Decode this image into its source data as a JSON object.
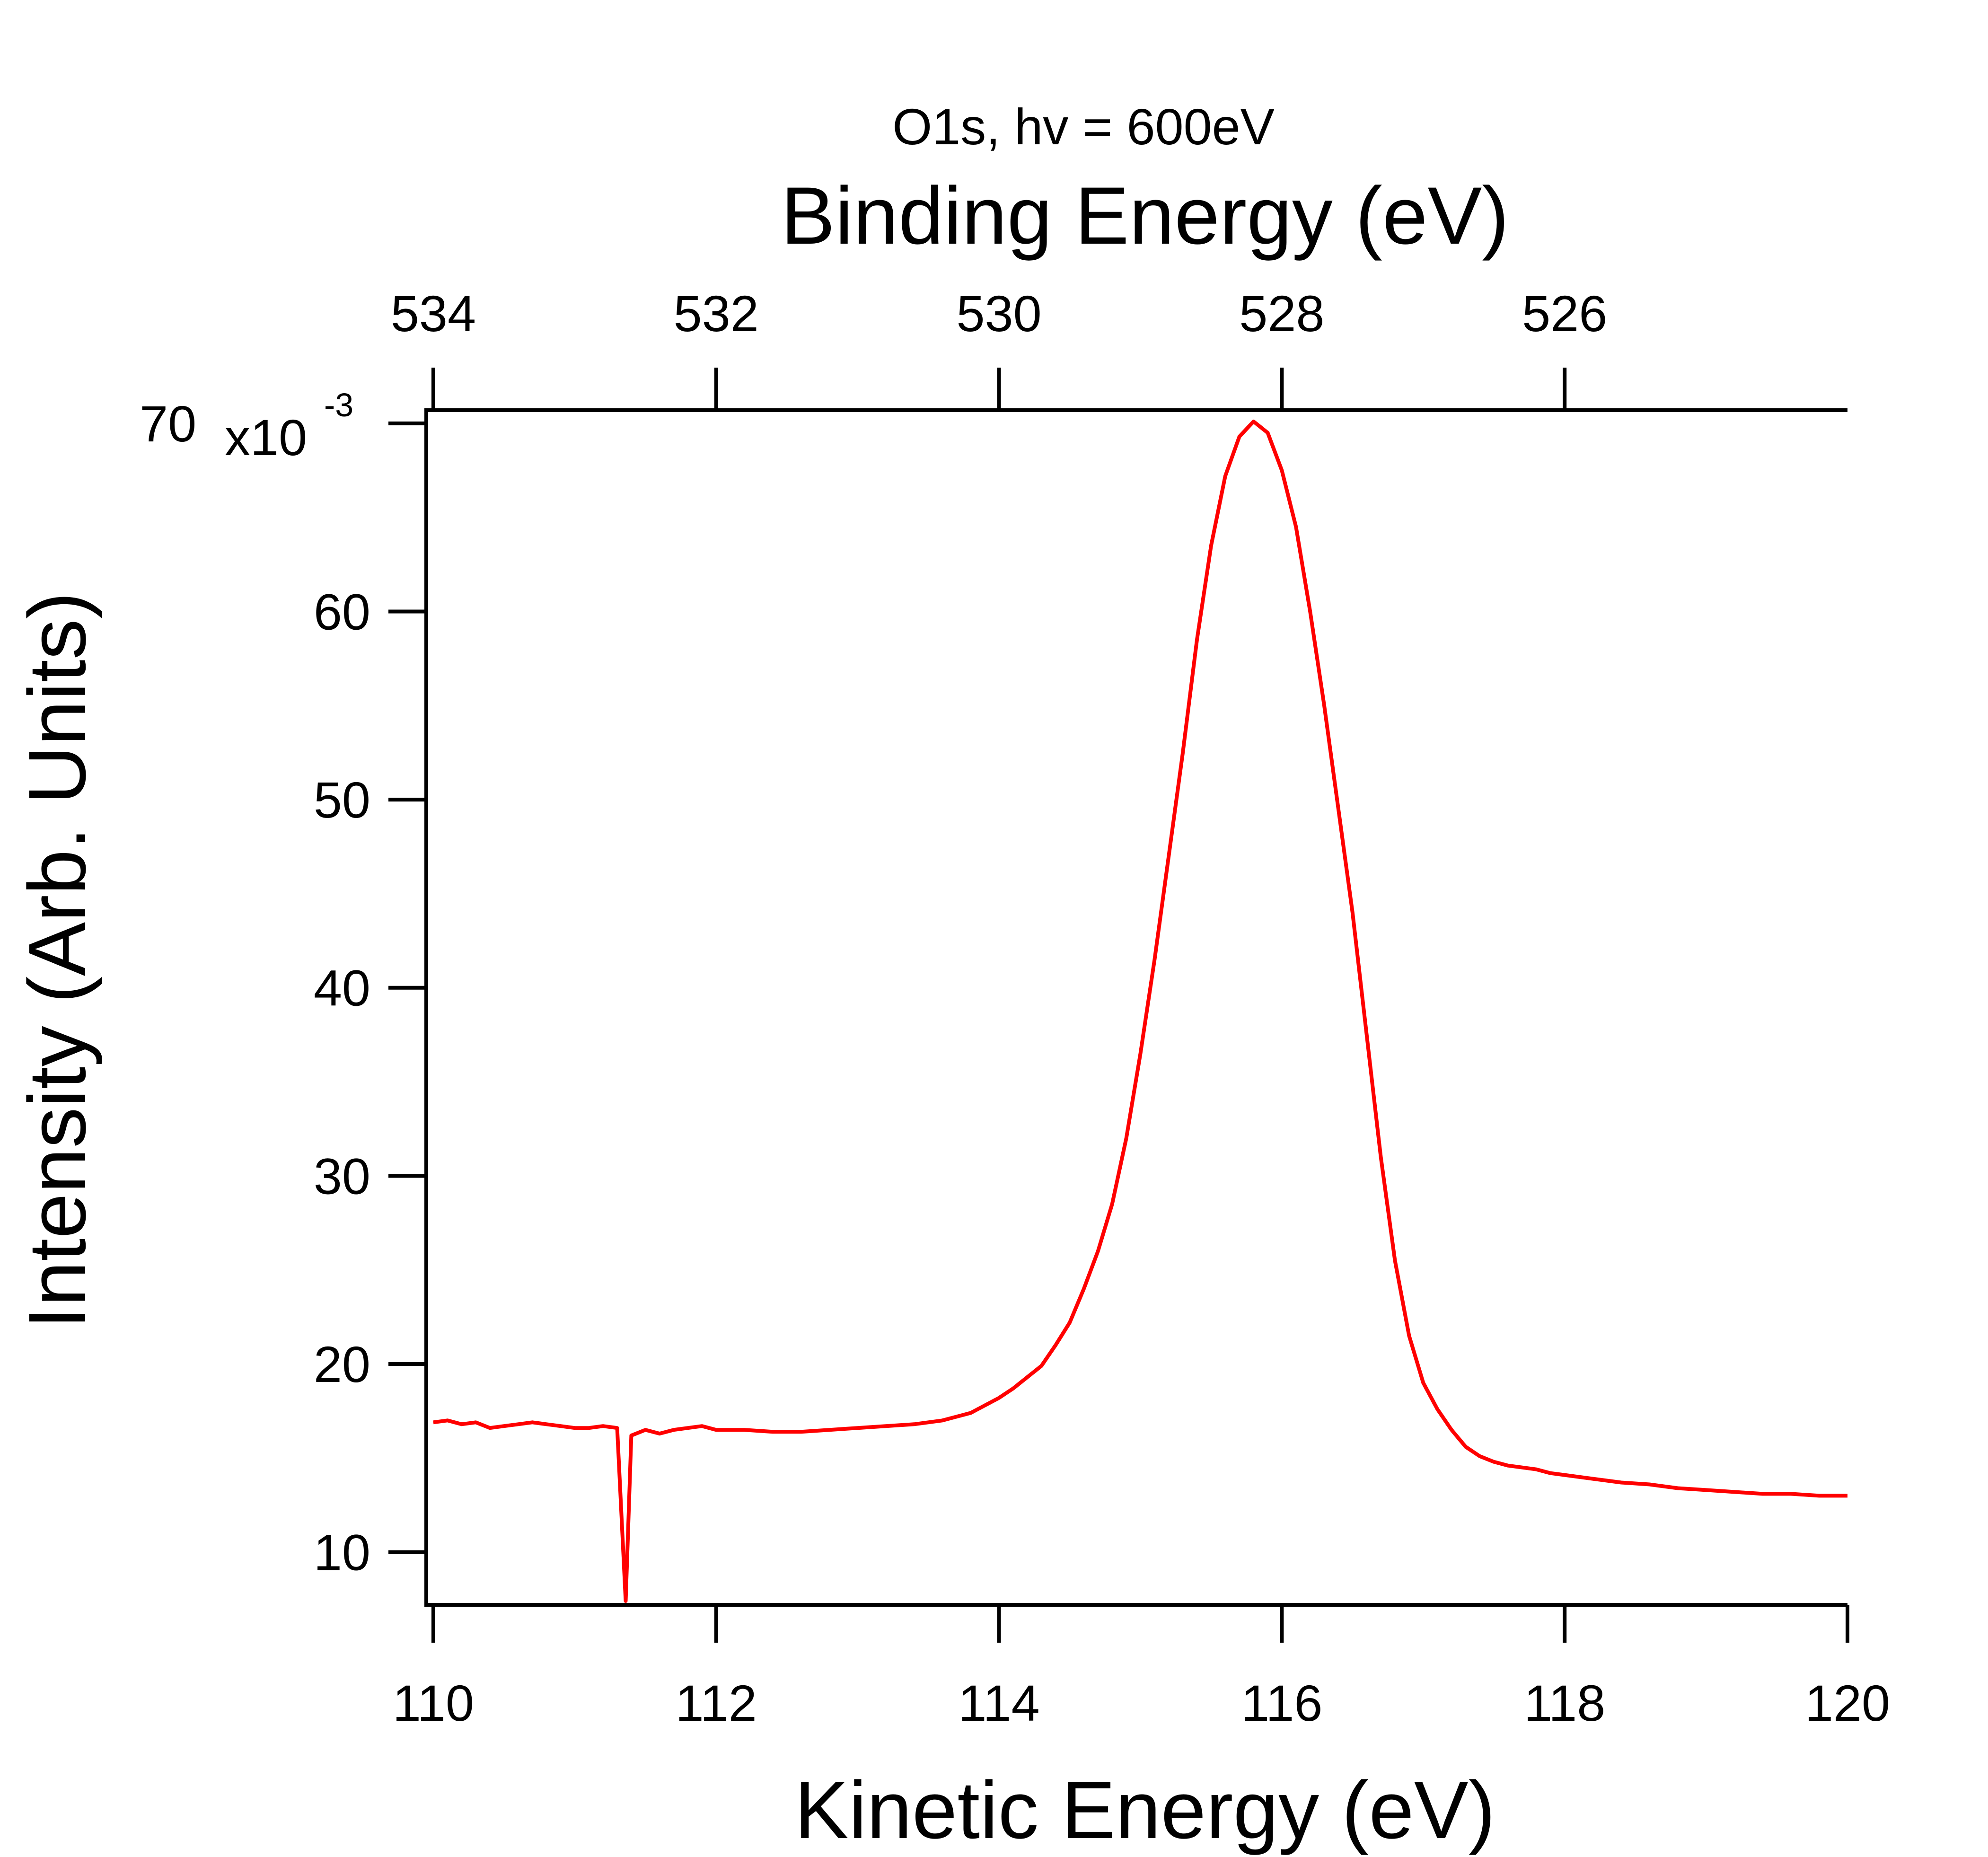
{
  "chart_data": {
    "type": "line",
    "title": "O1s, hv = 600eV",
    "xlabel": "Kinetic Energy (eV)",
    "ylabel": "Intensity (Arb. Units)",
    "top_xlabel": "Binding Energy (eV)",
    "xlim": [
      109.95,
      120.0
    ],
    "ylim": [
      0.0072,
      0.0707
    ],
    "x_ticks": [
      110,
      112,
      114,
      116,
      118,
      120
    ],
    "x_tick_labels": [
      "110",
      "112",
      "114",
      "116",
      "118",
      "120"
    ],
    "top_ticks": [
      534,
      532,
      530,
      528,
      526
    ],
    "top_tick_labels": [
      "534",
      "532",
      "530",
      "528",
      "526"
    ],
    "top_axis_relation": "binding = 644 - kinetic",
    "y_ticks": [
      0.01,
      0.02,
      0.03,
      0.04,
      0.05,
      0.06,
      0.07
    ],
    "y_tick_labels": [
      "10",
      "20",
      "30",
      "40",
      "50",
      "60",
      "70"
    ],
    "y_multiplier_label": "x10",
    "y_multiplier_exponent": "-3",
    "grid": false,
    "legend": "none",
    "series": [
      {
        "color": "#ff0000",
        "x": [
          110.0,
          110.1,
          110.2,
          110.3,
          110.4,
          110.5,
          110.6,
          110.7,
          110.8,
          110.9,
          111.0,
          111.1,
          111.2,
          111.3,
          111.36,
          111.4,
          111.5,
          111.6,
          111.7,
          111.8,
          111.9,
          112.0,
          112.2,
          112.4,
          112.6,
          112.8,
          113.0,
          113.2,
          113.4,
          113.6,
          113.8,
          114.0,
          114.1,
          114.2,
          114.3,
          114.4,
          114.5,
          114.6,
          114.7,
          114.8,
          114.9,
          115.0,
          115.1,
          115.2,
          115.3,
          115.4,
          115.5,
          115.6,
          115.7,
          115.8,
          115.9,
          116.0,
          116.1,
          116.2,
          116.3,
          116.4,
          116.5,
          116.6,
          116.7,
          116.8,
          116.9,
          117.0,
          117.1,
          117.2,
          117.3,
          117.4,
          117.5,
          117.6,
          117.7,
          117.8,
          117.9,
          118.0,
          118.2,
          118.4,
          118.6,
          118.8,
          119.0,
          119.2,
          119.4,
          119.6,
          119.8,
          120.0
        ],
        "values": [
          0.0169,
          0.017,
          0.0168,
          0.0169,
          0.0166,
          0.0167,
          0.0168,
          0.0169,
          0.0168,
          0.0167,
          0.0166,
          0.0166,
          0.0167,
          0.0166,
          0.0074,
          0.0162,
          0.0165,
          0.0163,
          0.0165,
          0.0166,
          0.0167,
          0.0165,
          0.0165,
          0.0164,
          0.0164,
          0.0165,
          0.0166,
          0.0167,
          0.0168,
          0.017,
          0.0174,
          0.0182,
          0.0187,
          0.0193,
          0.0199,
          0.021,
          0.0222,
          0.024,
          0.026,
          0.0285,
          0.032,
          0.0365,
          0.0415,
          0.047,
          0.0525,
          0.0585,
          0.0635,
          0.0672,
          0.0693,
          0.0701,
          0.0695,
          0.0675,
          0.0645,
          0.06,
          0.055,
          0.0495,
          0.044,
          0.0375,
          0.031,
          0.0255,
          0.0215,
          0.019,
          0.0176,
          0.0165,
          0.0156,
          0.0151,
          0.0148,
          0.0146,
          0.0145,
          0.0144,
          0.0142,
          0.0141,
          0.0139,
          0.0137,
          0.0136,
          0.0134,
          0.0133,
          0.0132,
          0.0131,
          0.0131,
          0.013,
          0.013
        ]
      }
    ]
  }
}
